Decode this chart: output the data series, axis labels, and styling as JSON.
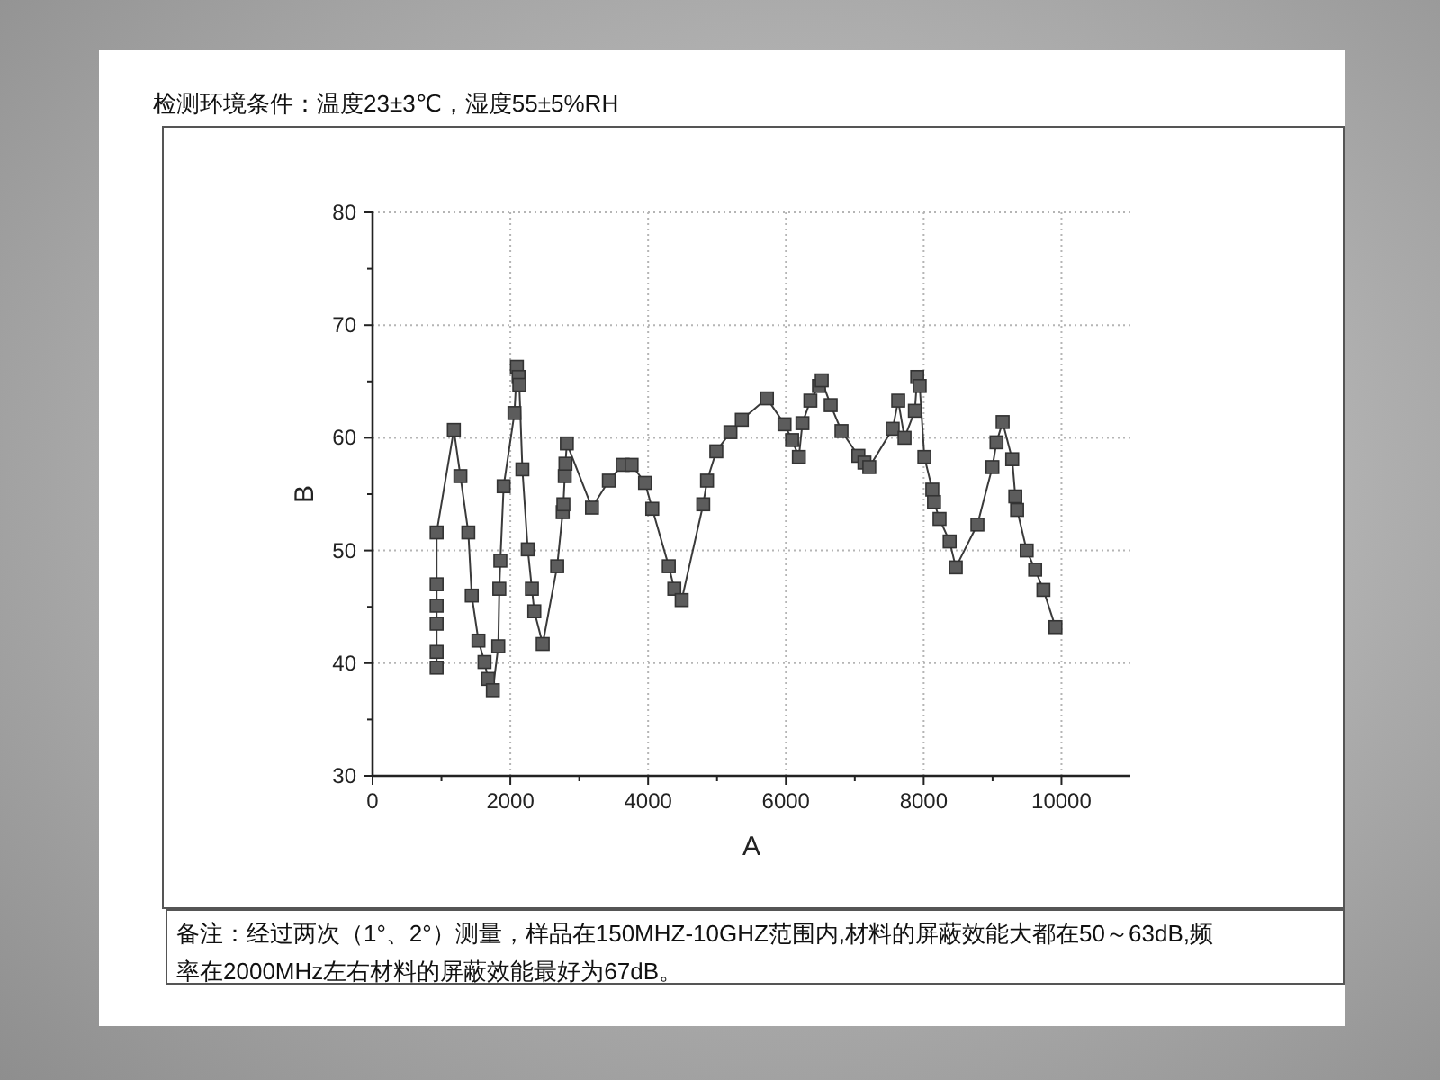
{
  "chart_data": {
    "type": "line",
    "title": "检测环境条件：温度23±3℃，湿度55±5%RH",
    "xlabel": "A",
    "ylabel": "B",
    "annotations": [
      "备注：经过两次（1°、2°）测量，样品在150MHZ-10GHZ范围内,材料的屏蔽效能大都在50～63dB,频率在2000MHz左右材料的屏蔽效能最好为67dB。"
    ],
    "x": [
      930,
      930,
      930,
      930,
      930,
      930,
      1180,
      1275,
      1390,
      1440,
      1537,
      1625,
      1676,
      1746,
      1825,
      1840,
      1855,
      1903,
      2060,
      2095,
      2120,
      2130,
      2175,
      2253,
      2313,
      2348,
      2470,
      2680,
      2760,
      2770,
      2790,
      2800,
      2820,
      3185,
      3430,
      3630,
      3760,
      3955,
      4060,
      4300,
      4380,
      4487,
      4800,
      4855,
      4990,
      5195,
      5360,
      5725,
      5980,
      6090,
      6188,
      6240,
      6355,
      6480,
      6520,
      6650,
      6807,
      7052,
      7140,
      7210,
      7550,
      7630,
      7722,
      7872,
      7906,
      7942,
      8010,
      8125,
      8150,
      8230,
      8377,
      8466,
      8780,
      8997,
      9057,
      9146,
      9285,
      9330,
      9356,
      9495,
      9618,
      9738,
      9913
    ],
    "values": [
      39.6,
      41.0,
      43.5,
      45.1,
      47.0,
      51.6,
      60.7,
      56.6,
      51.6,
      46.0,
      42.0,
      40.1,
      38.6,
      37.6,
      41.5,
      46.6,
      49.1,
      55.7,
      62.2,
      66.3,
      65.4,
      64.7,
      57.2,
      50.1,
      46.6,
      44.6,
      41.7,
      48.6,
      53.4,
      54.1,
      56.6,
      57.7,
      59.5,
      53.8,
      56.2,
      57.6,
      57.6,
      56.0,
      53.7,
      48.6,
      46.6,
      45.6,
      54.1,
      56.2,
      58.8,
      60.5,
      61.6,
      63.5,
      61.2,
      59.8,
      58.3,
      61.3,
      63.3,
      64.6,
      65.1,
      62.9,
      60.6,
      58.4,
      57.8,
      57.4,
      60.8,
      63.3,
      60.0,
      62.4,
      65.4,
      64.6,
      58.3,
      55.4,
      54.3,
      52.8,
      50.8,
      48.5,
      52.3,
      57.4,
      59.6,
      61.4,
      58.1,
      54.8,
      53.6,
      50.0,
      48.3,
      46.5,
      43.2
    ],
    "color": "#5c5c5c",
    "marker": "square",
    "line_style": "solid",
    "xlim": [
      0,
      11000
    ],
    "ylim": [
      30,
      80
    ],
    "xticks": [
      0,
      2000,
      4000,
      6000,
      8000,
      10000
    ],
    "yticks": [
      30,
      40,
      50,
      60,
      70,
      80
    ],
    "grid": true
  }
}
